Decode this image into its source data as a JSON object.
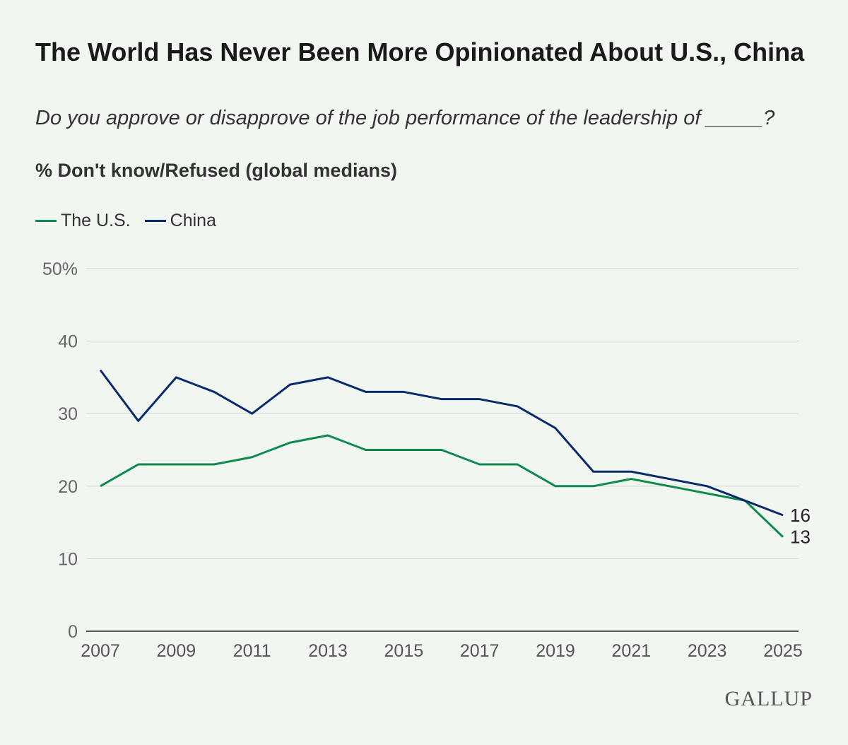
{
  "title": "The World Has Never Been More Opinionated About U.S., China",
  "subtitle": "Do you approve or disapprove of the job performance of the leadership of _____?",
  "measure": "% Don't know/Refused (global medians)",
  "logo": "GALLUP",
  "chart_data": {
    "type": "line",
    "x": [
      2007,
      2008,
      2009,
      2010,
      2011,
      2012,
      2013,
      2014,
      2015,
      2016,
      2017,
      2018,
      2019,
      2020,
      2021,
      2022,
      2023,
      2024,
      2025
    ],
    "series": [
      {
        "name": "The U.S.",
        "color": "#0f8a4f",
        "values": [
          20,
          23,
          23,
          23,
          24,
          26,
          27,
          25,
          25,
          25,
          23,
          23,
          20,
          20,
          21,
          null,
          19,
          18,
          13
        ]
      },
      {
        "name": "China",
        "color": "#0b2a6b",
        "values": [
          36,
          29,
          35,
          33,
          30,
          34,
          35,
          33,
          33,
          32,
          32,
          31,
          28,
          22,
          22,
          null,
          20,
          18,
          16
        ]
      }
    ],
    "end_labels": [
      "13",
      "16"
    ],
    "ylim": [
      0,
      50
    ],
    "yticks": [
      "0",
      "10",
      "20",
      "30",
      "40",
      "50%"
    ],
    "yticks_values": [
      0,
      10,
      20,
      30,
      40,
      50
    ],
    "xticks": [
      "2007",
      "2009",
      "2011",
      "2013",
      "2015",
      "2017",
      "2019",
      "2021",
      "2023",
      "2025"
    ],
    "grid": true,
    "legend_position": "top-left"
  }
}
